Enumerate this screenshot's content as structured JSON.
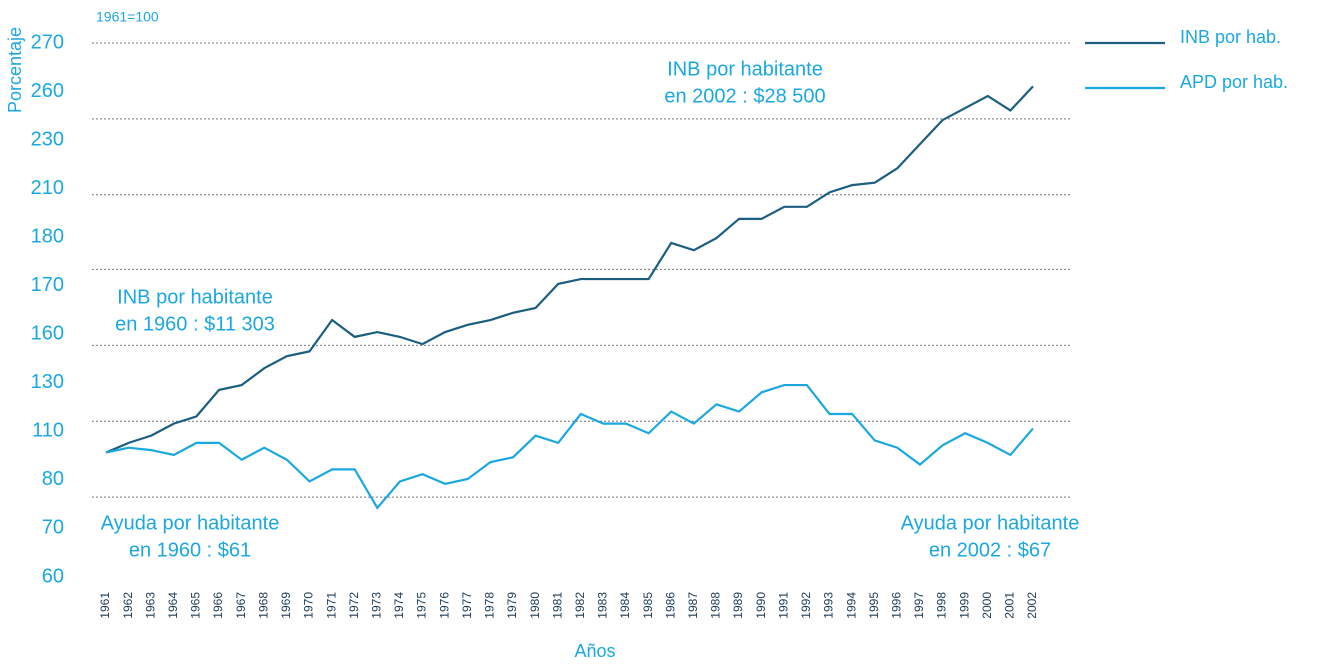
{
  "chart_data": {
    "type": "line",
    "index_note": "1961=100",
    "y_label": "Porcentaje",
    "x_label": "Años",
    "categories": [
      "1961",
      "1962",
      "1963",
      "1964",
      "1965",
      "1966",
      "1967",
      "1968",
      "1969",
      "1970",
      "1971",
      "1972",
      "1973",
      "1974",
      "1975",
      "1976",
      "1977",
      "1978",
      "1979",
      "1980",
      "1981",
      "1982",
      "1983",
      "1984",
      "1985",
      "1986",
      "1987",
      "1988",
      "1989",
      "1990",
      "1991",
      "1992",
      "1993",
      "1994",
      "1995",
      "1996",
      "1997",
      "1998",
      "1999",
      "2000",
      "2001",
      "2002"
    ],
    "series": [
      {
        "name": "INB por hab.",
        "color": "#1b5e7f",
        "values": [
          100,
          104,
          107,
          112,
          115,
          126,
          128,
          135,
          140,
          142,
          155,
          148,
          150,
          148,
          145,
          150,
          153,
          155,
          158,
          160,
          170,
          172,
          172,
          172,
          172,
          187,
          184,
          189,
          197,
          197,
          202,
          202,
          208,
          211,
          212,
          218,
          228,
          238,
          243,
          248,
          242,
          252
        ]
      },
      {
        "name": "APD por hab.",
        "color": "#1ba8e0",
        "values": [
          100,
          102,
          101,
          99,
          104,
          104,
          97,
          102,
          97,
          88,
          93,
          93,
          77,
          88,
          91,
          87,
          89,
          96,
          98,
          107,
          104,
          116,
          112,
          112,
          108,
          117,
          112,
          120,
          117,
          125,
          128,
          128,
          116,
          116,
          105,
          102,
          95,
          103,
          108,
          104,
          99,
          110
        ]
      }
    ],
    "ylim": [
      45,
      270
    ],
    "ytick_labels": [
      "270",
      "260",
      "230",
      "210",
      "180",
      "170",
      "160",
      "130",
      "110",
      "80",
      "70",
      "60"
    ],
    "gridlines": [
      270,
      238.5,
      207,
      176,
      144.5,
      113,
      81.5
    ],
    "annotations": [
      {
        "text": [
          "INB por habitante",
          "en 1960 : $11 303"
        ]
      },
      {
        "text": [
          "INB por habitante",
          "en 2002 : $28 500"
        ]
      },
      {
        "text": [
          "Ayuda por habitante",
          "en 1960 : $61"
        ]
      },
      {
        "text": [
          "Ayuda por habitante",
          "en 2002 : $67"
        ]
      }
    ]
  }
}
